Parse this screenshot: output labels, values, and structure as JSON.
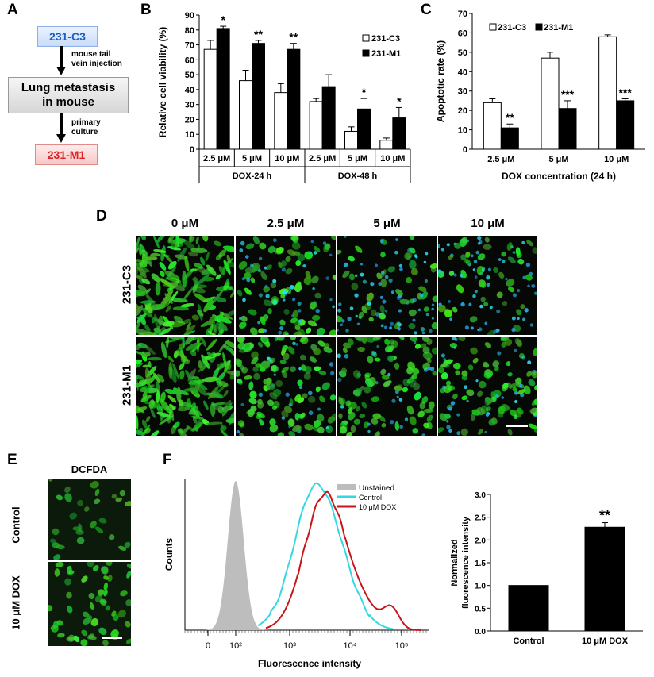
{
  "panels": {
    "A": "A",
    "B": "B",
    "C": "C",
    "D": "D",
    "E": "E",
    "F": "F"
  },
  "panel_a": {
    "box1": "231-C3",
    "step1": "mouse tail\nvein injection",
    "box2": "Lung metastasis\nin mouse",
    "step2": "primary\nculture",
    "box3": "231-M1"
  },
  "chart_data": [
    {
      "id": "B",
      "type": "bar",
      "ylabel": "Relative cell viability (%)",
      "ylim": [
        0,
        90
      ],
      "yticks": [
        0,
        10,
        20,
        30,
        40,
        50,
        60,
        70,
        80,
        90
      ],
      "categories": [
        "2.5 μM",
        "5 μM",
        "10 μM",
        "2.5 μM",
        "5 μM",
        "10 μM"
      ],
      "groups": [
        {
          "label": "DOX-24 h",
          "span": [
            0,
            2
          ]
        },
        {
          "label": "DOX-48 h",
          "span": [
            3,
            5
          ]
        }
      ],
      "series": [
        {
          "name": "231-C3",
          "color": "#ffffff",
          "values": [
            67,
            46,
            38,
            32,
            12,
            6
          ],
          "errors": [
            6,
            7,
            6,
            2,
            3,
            1.5
          ]
        },
        {
          "name": "231-M1",
          "color": "#000000",
          "values": [
            81,
            71,
            67,
            42,
            27,
            21
          ],
          "errors": [
            1.5,
            2,
            4,
            8,
            7,
            7
          ]
        }
      ],
      "annotations": [
        "*",
        "**",
        "**",
        "",
        "*",
        "*"
      ],
      "legend": "top-right"
    },
    {
      "id": "C",
      "type": "bar",
      "ylabel": "Apoptotic rate (%)",
      "xlabel": "DOX concentration (24 h)",
      "ylim": [
        0,
        70
      ],
      "yticks": [
        0,
        10,
        20,
        30,
        40,
        50,
        60,
        70
      ],
      "categories": [
        "2.5 μM",
        "5 μM",
        "10 μM"
      ],
      "series": [
        {
          "name": "231-C3",
          "color": "#ffffff",
          "values": [
            24,
            47,
            58
          ],
          "errors": [
            2,
            3,
            1
          ]
        },
        {
          "name": "231-M1",
          "color": "#000000",
          "values": [
            11,
            21,
            25
          ],
          "errors": [
            2,
            4,
            1
          ]
        }
      ],
      "annotations": [
        "**",
        "***",
        "***"
      ],
      "legend": "top-left"
    },
    {
      "id": "F-hist",
      "type": "line",
      "ylabel": "Counts",
      "xlabel": "Fluorescence intensity",
      "xscale": "log",
      "xticks": [
        "0",
        "10²",
        "10³",
        "10⁴",
        "10⁵"
      ],
      "series": [
        {
          "name": "Unstained",
          "color": "#bdbdbd"
        },
        {
          "name": "Control",
          "color": "#35d7e0"
        },
        {
          "name": "10 μM DOX",
          "color": "#c8151b"
        }
      ],
      "legend": "top-right"
    },
    {
      "id": "F-bar",
      "type": "bar",
      "ylabel": "Normalized fluorescence intensity",
      "ylim": [
        0,
        3.0
      ],
      "yticks": [
        0,
        0.5,
        1.0,
        1.5,
        2.0,
        2.5,
        3.0
      ],
      "categories": [
        "Control",
        "10 μM DOX"
      ],
      "values": [
        1.0,
        2.28
      ],
      "errors": [
        0,
        0.1
      ],
      "annotations": [
        "",
        "**"
      ]
    }
  ],
  "panel_d": {
    "columns": [
      "0 μM",
      "2.5 μM",
      "5 μM",
      "10 μM"
    ],
    "rows": [
      "231-C3",
      "231-M1"
    ]
  },
  "panel_e": {
    "title": "DCFDA",
    "rows": [
      "Control",
      "10 μM DOX"
    ]
  }
}
